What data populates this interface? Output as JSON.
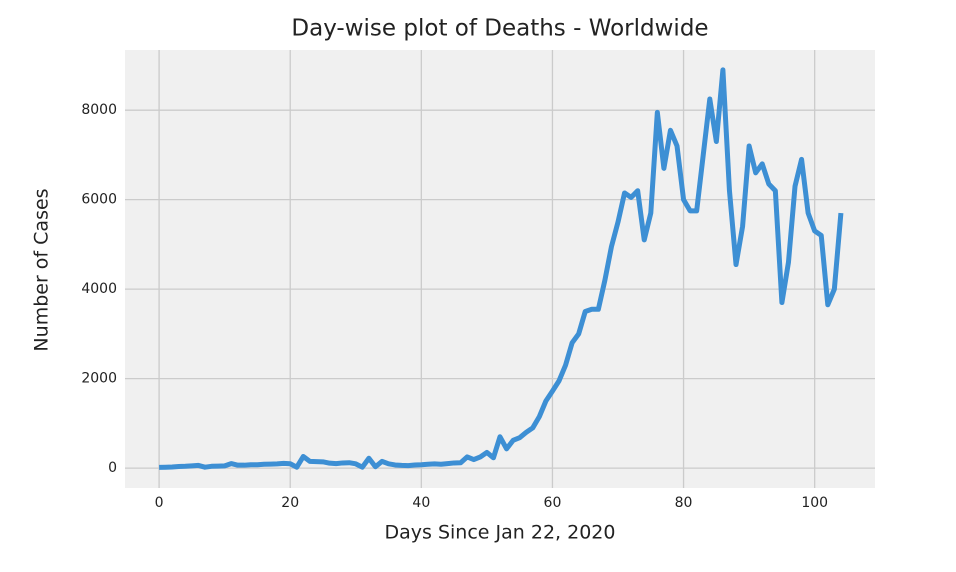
{
  "chart_data": {
    "type": "line",
    "title": "Day-wise plot of Deaths - Worldwide",
    "x_label": "Days Since Jan 22, 2020",
    "y_label": "Number of Cases",
    "x": [
      0,
      1,
      2,
      3,
      4,
      5,
      6,
      7,
      8,
      9,
      10,
      11,
      12,
      13,
      14,
      15,
      16,
      17,
      18,
      19,
      20,
      21,
      22,
      23,
      24,
      25,
      26,
      27,
      28,
      29,
      30,
      31,
      32,
      33,
      34,
      35,
      36,
      37,
      38,
      39,
      40,
      41,
      42,
      43,
      44,
      45,
      46,
      47,
      48,
      49,
      50,
      51,
      52,
      53,
      54,
      55,
      56,
      57,
      58,
      59,
      60,
      61,
      62,
      63,
      64,
      65,
      66,
      67,
      68,
      69,
      70,
      71,
      72,
      73,
      74,
      75,
      76,
      77,
      78,
      79,
      80,
      81,
      82,
      83,
      84,
      85,
      86,
      87,
      88,
      89,
      90,
      91,
      92,
      93,
      94,
      95,
      96,
      97,
      98,
      99,
      100,
      101,
      102,
      103,
      104
    ],
    "series": [
      {
        "name": "Deaths",
        "color": "#3d8fd4",
        "values": [
          17,
          20,
          25,
          35,
          40,
          50,
          60,
          20,
          40,
          45,
          50,
          100,
          65,
          65,
          75,
          75,
          85,
          90,
          95,
          105,
          97,
          20,
          260,
          150,
          145,
          140,
          110,
          100,
          115,
          120,
          95,
          20,
          220,
          30,
          150,
          95,
          70,
          60,
          55,
          70,
          75,
          85,
          95,
          85,
          100,
          115,
          120,
          250,
          190,
          250,
          350,
          230,
          700,
          430,
          620,
          680,
          800,
          900,
          1150,
          1500,
          1720,
          1950,
          2300,
          2800,
          3000,
          3500,
          3550,
          3550,
          4200,
          4950,
          5500,
          6150,
          6050,
          6200,
          5100,
          5700,
          7950,
          6700,
          7550,
          7200,
          6000,
          5750,
          5750,
          7000,
          8250,
          7300,
          8900,
          6200,
          4550,
          5400,
          7200,
          6600,
          6800,
          6350,
          6200,
          3700,
          4600,
          6300,
          6900,
          5700,
          5300,
          5200,
          3650,
          4000,
          5700
        ]
      }
    ],
    "xlim": [
      -5.2,
      109.2
    ],
    "ylim": [
      -445,
      9345
    ],
    "xticks": [
      0,
      20,
      40,
      60,
      80,
      100
    ],
    "yticks": [
      0,
      2000,
      4000,
      6000,
      8000
    ],
    "grid": true
  }
}
